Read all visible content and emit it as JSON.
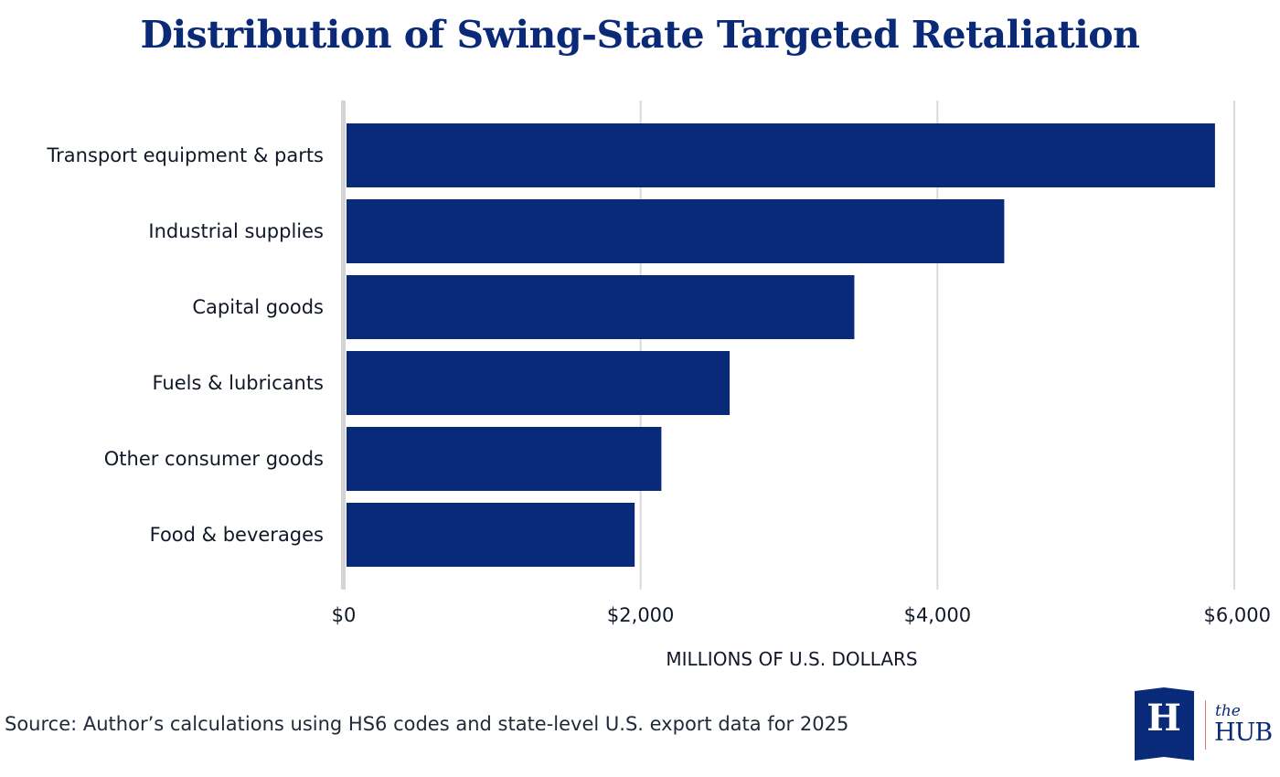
{
  "chart_data": {
    "type": "bar",
    "orientation": "horizontal",
    "title": "Distribution of Swing-State Targeted Retaliation",
    "xlabel": "MILLIONS OF U.S. DOLLARS",
    "ylabel": "",
    "categories": [
      "Transport equipment & parts",
      "Industrial supplies",
      "Capital goods",
      "Fuels & lubricants",
      "Other consumer goods",
      "Food & beverages"
    ],
    "values": [
      5870,
      4450,
      3440,
      2600,
      2140,
      1960
    ],
    "xlim": [
      0,
      6000
    ],
    "xticks": [
      0,
      2000,
      4000,
      6000
    ],
    "xtick_labels": [
      "$0",
      "$2,000",
      "$4,000",
      "$6,000"
    ],
    "grid": "vertical",
    "bar_color": "#082a78"
  },
  "source_note": "Source: Author’s calculations using HS6 codes and state-level U.S. export data for 2025",
  "logo": {
    "letter": "H",
    "the": "the",
    "hub": "HUB",
    "color": "#082a78"
  }
}
